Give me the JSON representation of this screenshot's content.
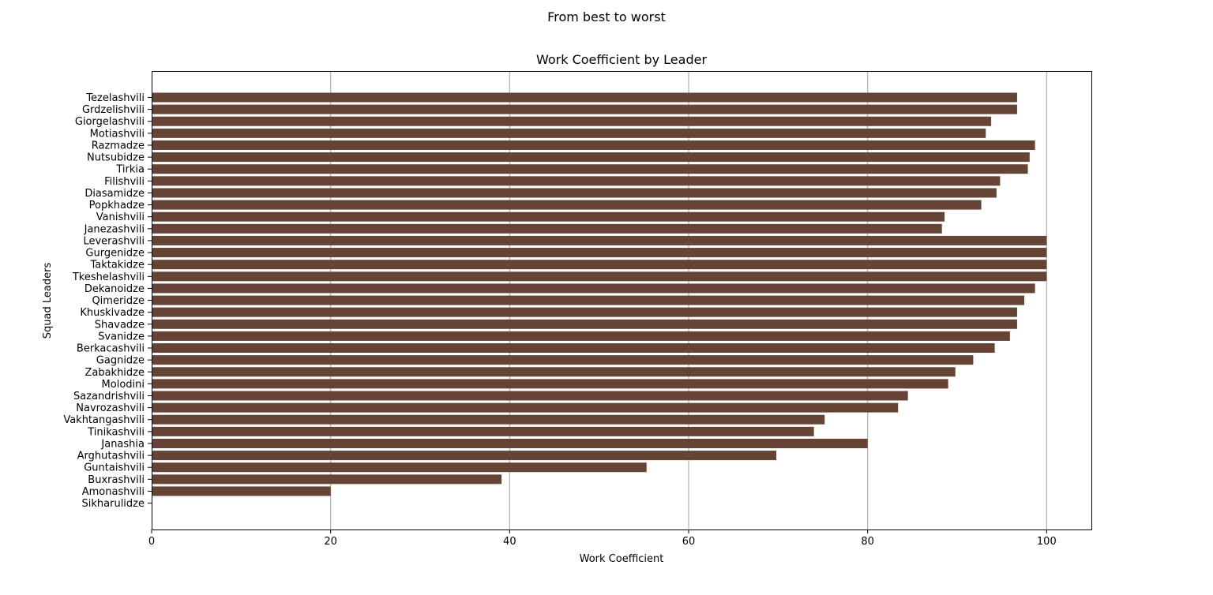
{
  "suptitle": "From best to worst",
  "chart_data": {
    "type": "bar",
    "orientation": "horizontal",
    "title": "Work Coefficient by Leader",
    "xlabel": "Work Coefficient",
    "ylabel": "Squad Leaders",
    "xlim": [
      0,
      105
    ],
    "xticks": [
      0,
      20,
      40,
      60,
      80,
      100
    ],
    "grid": "x",
    "bar_color": "#654435",
    "categories": [
      "Tezelashvili",
      "Grdzelishvili",
      "Giorgelashvili",
      "Motiashvili",
      "Razmadze",
      "Nutsubidze",
      "Tirkia",
      "Filishvili",
      "Diasamidze",
      "Popkhadze",
      "Vanishvili",
      "Janezashvili",
      "Leverashvili",
      "Gurgenidze",
      "Taktakidze",
      "Tkeshelashvili",
      "Dekanoidze",
      "Qimeridze",
      "Khuskivadze",
      "Shavadze",
      "Svanidze",
      "Berkacashvili",
      "Gagnidze",
      "Zabakhidze",
      "Molodini",
      "Sazandrishvili",
      "Navrozashvili",
      "Vakhtangashvili",
      "Tinikashvili",
      "Janashia",
      "Arghutashvili",
      "Guntaishvili",
      "Buxrashvili",
      "Amonashvili",
      "Sikharulidze"
    ],
    "values": [
      96.7,
      96.7,
      93.8,
      93.2,
      98.7,
      98.1,
      97.9,
      94.8,
      94.4,
      92.7,
      88.6,
      88.3,
      100,
      100,
      100,
      100,
      98.7,
      97.5,
      96.7,
      96.7,
      95.9,
      94.2,
      91.8,
      89.8,
      89.0,
      84.5,
      83.4,
      75.2,
      74.0,
      80.0,
      69.8,
      55.3,
      39.1,
      20.0,
      0
    ]
  }
}
